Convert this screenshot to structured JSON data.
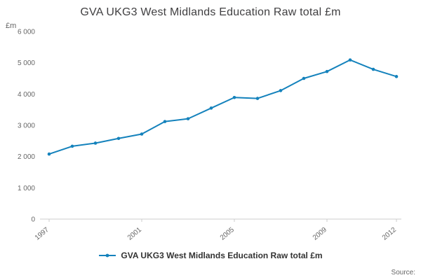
{
  "title": "GVA UKG3 West Midlands Education Raw total £m",
  "y_unit_label": "£m",
  "source_label": "Source:",
  "legend": {
    "label": "GVA UKG3 West Midlands Education Raw total £m"
  },
  "colors": {
    "line": "#1482bc",
    "axis": "#cccccc",
    "tick_text": "#666666",
    "title_text": "#414042"
  },
  "chart_data": {
    "type": "line",
    "title": "GVA UKG3 West Midlands Education Raw total £m",
    "xlabel": "",
    "ylabel": "£m",
    "ylim": [
      0,
      6000
    ],
    "grid": false,
    "legend_position": "bottom",
    "x": [
      1997,
      1998,
      1999,
      2000,
      2001,
      2002,
      2003,
      2004,
      2005,
      2006,
      2007,
      2008,
      2009,
      2010,
      2011,
      2012
    ],
    "series": [
      {
        "name": "GVA UKG3 West Midlands Education Raw total £m",
        "values": [
          2080,
          2330,
          2430,
          2580,
          2720,
          3120,
          3210,
          3550,
          3890,
          3860,
          4110,
          4500,
          4720,
          5090,
          4790,
          4560
        ]
      }
    ],
    "yticks": [
      0,
      1000,
      2000,
      3000,
      4000,
      5000,
      6000
    ],
    "ytick_labels": [
      "0",
      "1 000",
      "2 000",
      "3 000",
      "4 000",
      "5 000",
      "6 000"
    ],
    "xticks": [
      1997,
      2001,
      2005,
      2009,
      2012
    ]
  }
}
